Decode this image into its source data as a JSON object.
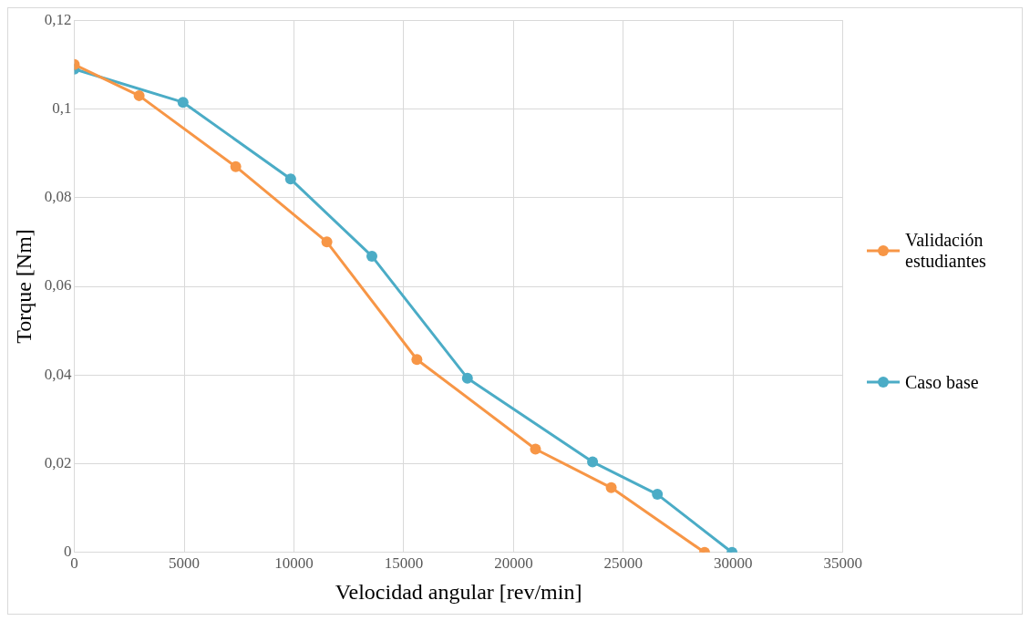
{
  "chart_data": {
    "type": "line",
    "xlabel": "Velocidad angular [rev/min]",
    "ylabel": "Torque [Nm]",
    "xlim": [
      0,
      35000
    ],
    "xticks": [
      0,
      5000,
      10000,
      15000,
      20000,
      25000,
      30000,
      35000
    ],
    "ylim": [
      0,
      0.12
    ],
    "yticks": [
      0,
      {
        "value": 0.02,
        "label": "0,02"
      },
      {
        "value": 0.04,
        "label": "0,04"
      },
      {
        "value": 0.06,
        "label": "0,06"
      },
      {
        "value": 0.08,
        "label": "0,08"
      },
      {
        "value": 0.1,
        "label": "0,1"
      },
      {
        "value": 0.12,
        "label": "0,12"
      }
    ],
    "grid": true,
    "legend": "right",
    "marker": "circle",
    "line_style": "solid",
    "series": [
      {
        "name": "Validación estudiantes",
        "color": "#f79646",
        "x": [
          0,
          2950,
          7350,
          11500,
          15600,
          21000,
          24450,
          28700
        ],
        "values": [
          0.11,
          0.103,
          0.087,
          0.07,
          0.0435,
          0.0233,
          0.0146,
          0
        ]
      },
      {
        "name": "Caso base",
        "color": "#4bacc6",
        "x": [
          0,
          4950,
          9850,
          13550,
          17900,
          23600,
          26550,
          29950
        ],
        "values": [
          0.109,
          0.1015,
          0.0842,
          0.0668,
          0.0393,
          0.0204,
          0.0131,
          0
        ]
      }
    ]
  }
}
